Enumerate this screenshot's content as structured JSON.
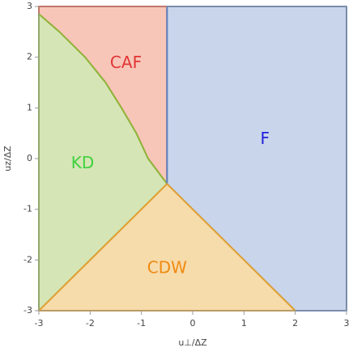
{
  "chart_data": {
    "type": "regions",
    "xlabel": "u⊥/ΔZ",
    "ylabel": "uz/ΔZ",
    "xlim": [
      -3,
      3
    ],
    "ylim": [
      -3,
      3
    ],
    "xticks": [
      -3,
      -2,
      -1,
      0,
      1,
      2,
      3
    ],
    "yticks": [
      -3,
      -2,
      -1,
      0,
      1,
      2,
      3
    ],
    "regions": [
      {
        "name": "CAF",
        "color": "#f7c6b8",
        "edge_color": "#e2583a",
        "label_color": "#e03535",
        "x": [
          -3,
          -2.6,
          -2.1,
          -1.7,
          -1.39,
          -1.1,
          -0.87,
          -0.5,
          -0.5,
          -3
        ],
        "y": [
          2.85,
          2.5,
          2,
          1.5,
          1,
          0.5,
          0,
          -0.5,
          3,
          3
        ]
      },
      {
        "name": "KD",
        "color": "#d6e5b6",
        "edge_color": "#8db53a",
        "label_color": "#3ed23e",
        "x": [
          -3,
          -3,
          -2.6,
          -2.1,
          -1.7,
          -1.39,
          -1.1,
          -0.87,
          -0.5
        ],
        "y": [
          -3,
          2.85,
          2.5,
          2,
          1.5,
          1,
          0.5,
          0,
          -0.5
        ]
      },
      {
        "name": "F",
        "color": "#c9d5ea",
        "edge_color": "#5b80c0",
        "label_color": "#2323dd",
        "x": [
          -0.5,
          -0.5,
          3,
          3,
          2
        ],
        "y": [
          -0.5,
          3,
          3,
          -3,
          -3
        ]
      },
      {
        "name": "CDW",
        "color": "#f6dbab",
        "edge_color": "#e0a030",
        "label_color": "#f08a12",
        "x": [
          -3,
          -0.5,
          2
        ],
        "y": [
          -3,
          -0.5,
          -3
        ]
      }
    ]
  }
}
